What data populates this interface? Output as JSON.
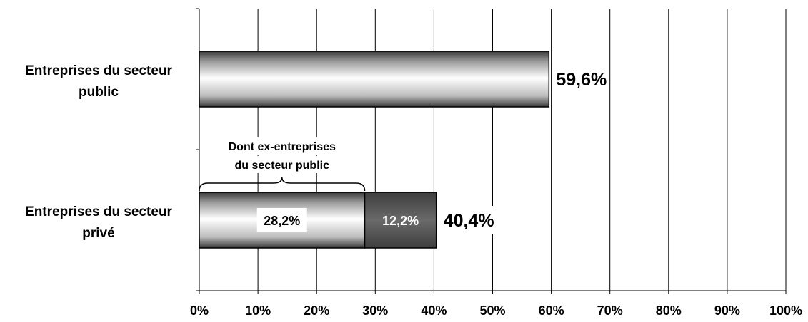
{
  "chart_data": {
    "type": "bar",
    "orientation": "horizontal",
    "stacked": true,
    "categories": [
      "Entreprises du secteur public",
      "Entreprises du secteur privé"
    ],
    "category_label_lines": [
      [
        "Entreprises du secteur",
        "public"
      ],
      [
        "Entreprises du secteur",
        "privé"
      ]
    ],
    "segments": [
      [
        {
          "value": 59.6,
          "label": "",
          "style": "light"
        }
      ],
      [
        {
          "value": 28.2,
          "label": "28,2%",
          "style": "light"
        },
        {
          "value": 12.2,
          "label": "12,2%",
          "style": "dark"
        }
      ]
    ],
    "total_labels": [
      "59,6%",
      "40,4%"
    ],
    "xlim": [
      0,
      100
    ],
    "x_ticks": [
      0,
      10,
      20,
      30,
      40,
      50,
      60,
      70,
      80,
      90,
      100
    ],
    "x_tick_labels": [
      "0%",
      "10%",
      "20%",
      "30%",
      "40%",
      "50%",
      "60%",
      "70%",
      "80%",
      "90%",
      "100%"
    ],
    "grid": true,
    "annotation": {
      "lines": [
        "Dont ex-entreprises",
        "du secteur public"
      ],
      "from": 0,
      "to": 28.2
    },
    "colors": {
      "dark_segment": "#5a5a5a",
      "light_gradient_edge": "#3a3a3a",
      "light_gradient_mid": "#ffffff",
      "grid": "#000000"
    }
  }
}
